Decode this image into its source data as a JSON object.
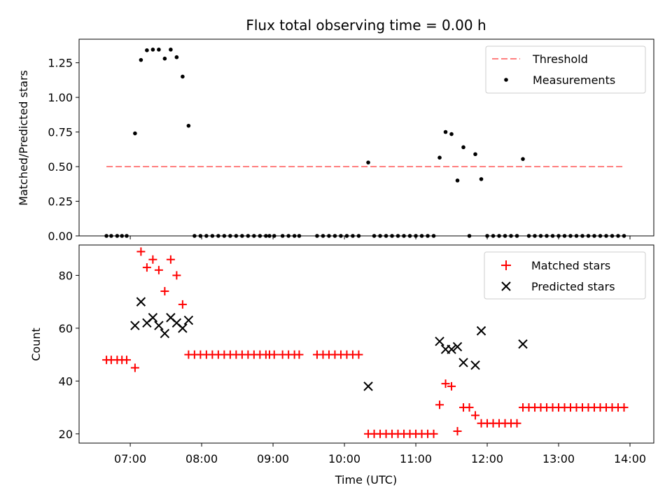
{
  "chart_data": {
    "type": "scatter",
    "title": "Flux total observing time = 0.00 h",
    "xlabel": "Time (UTC)",
    "x_ticks": [
      "07:00",
      "08:00",
      "09:00",
      "10:00",
      "11:00",
      "12:00",
      "13:00",
      "14:00"
    ],
    "xlim": [
      "06:17",
      "14:20"
    ],
    "top": {
      "ylabel": "Matched/Predicted stars",
      "ylim": [
        0,
        1.42
      ],
      "y_ticks": [
        "0.00",
        "0.25",
        "0.50",
        "0.75",
        "1.00",
        "1.25"
      ],
      "threshold": {
        "name": "Threshold",
        "value": 0.5,
        "x_range": [
          "06:40",
          "13:55"
        ],
        "color": "#ff7f7f"
      },
      "measurements": {
        "name": "Measurements",
        "color": "#000000",
        "points": [
          [
            "06:40",
            0
          ],
          [
            "06:44",
            0
          ],
          [
            "06:49",
            0
          ],
          [
            "06:53",
            0
          ],
          [
            "06:57",
            0
          ],
          [
            "07:04",
            0.74
          ],
          [
            "07:09",
            1.27
          ],
          [
            "07:14",
            1.34
          ],
          [
            "07:19",
            1.345
          ],
          [
            "07:24",
            1.345
          ],
          [
            "07:29",
            1.28
          ],
          [
            "07:34",
            1.345
          ],
          [
            "07:39",
            1.29
          ],
          [
            "07:44",
            1.15
          ],
          [
            "07:49",
            0.795
          ],
          [
            "07:54",
            0
          ],
          [
            "07:59",
            0
          ],
          [
            "08:04",
            0
          ],
          [
            "08:09",
            0
          ],
          [
            "08:14",
            0
          ],
          [
            "08:19",
            0
          ],
          [
            "08:24",
            0
          ],
          [
            "08:29",
            0
          ],
          [
            "08:34",
            0
          ],
          [
            "08:39",
            0
          ],
          [
            "08:44",
            0
          ],
          [
            "08:49",
            0
          ],
          [
            "08:54",
            0
          ],
          [
            "08:57",
            0
          ],
          [
            "09:01",
            0
          ],
          [
            "09:08",
            0
          ],
          [
            "09:13",
            0
          ],
          [
            "09:18",
            0
          ],
          [
            "09:22",
            0
          ],
          [
            "09:37",
            0
          ],
          [
            "09:42",
            0
          ],
          [
            "09:47",
            0
          ],
          [
            "09:52",
            0
          ],
          [
            "09:57",
            0
          ],
          [
            "10:02",
            0
          ],
          [
            "10:07",
            0
          ],
          [
            "10:12",
            0
          ],
          [
            "10:20",
            0.53
          ],
          [
            "10:25",
            0
          ],
          [
            "10:30",
            0
          ],
          [
            "10:35",
            0
          ],
          [
            "10:40",
            0
          ],
          [
            "10:45",
            0
          ],
          [
            "10:50",
            0
          ],
          [
            "10:55",
            0
          ],
          [
            "11:00",
            0
          ],
          [
            "11:05",
            0
          ],
          [
            "11:10",
            0
          ],
          [
            "11:15",
            0
          ],
          [
            "11:20",
            0.565
          ],
          [
            "11:25",
            0.75
          ],
          [
            "11:30",
            0.735
          ],
          [
            "11:35",
            0.4
          ],
          [
            "11:40",
            0.64
          ],
          [
            "11:45",
            0
          ],
          [
            "11:50",
            0.59
          ],
          [
            "11:55",
            0.41
          ],
          [
            "12:00",
            0
          ],
          [
            "12:05",
            0
          ],
          [
            "12:10",
            0
          ],
          [
            "12:15",
            0
          ],
          [
            "12:20",
            0
          ],
          [
            "12:25",
            0
          ],
          [
            "12:30",
            0.555
          ],
          [
            "12:35",
            0
          ],
          [
            "12:40",
            0
          ],
          [
            "12:45",
            0
          ],
          [
            "12:50",
            0
          ],
          [
            "12:55",
            0
          ],
          [
            "13:00",
            0
          ],
          [
            "13:05",
            0
          ],
          [
            "13:10",
            0
          ],
          [
            "13:15",
            0
          ],
          [
            "13:20",
            0
          ],
          [
            "13:25",
            0
          ],
          [
            "13:30",
            0
          ],
          [
            "13:35",
            0
          ],
          [
            "13:40",
            0
          ],
          [
            "13:45",
            0
          ],
          [
            "13:50",
            0
          ],
          [
            "13:55",
            0
          ]
        ]
      },
      "legend_position": "upper right"
    },
    "bottom": {
      "ylabel": "Count",
      "ylim": [
        16.5,
        91.5
      ],
      "y_ticks": [
        "20",
        "40",
        "60",
        "80"
      ],
      "series": [
        {
          "name": "Matched stars",
          "marker": "plus",
          "color": "#ff0000",
          "points": [
            [
              "06:40",
              48
            ],
            [
              "06:44",
              48
            ],
            [
              "06:49",
              48
            ],
            [
              "06:53",
              48
            ],
            [
              "06:57",
              48
            ],
            [
              "07:04",
              45
            ],
            [
              "07:09",
              89
            ],
            [
              "07:14",
              83
            ],
            [
              "07:19",
              86
            ],
            [
              "07:24",
              82
            ],
            [
              "07:29",
              74
            ],
            [
              "07:34",
              86
            ],
            [
              "07:39",
              80
            ],
            [
              "07:44",
              69
            ],
            [
              "07:49",
              50
            ],
            [
              "07:54",
              50
            ],
            [
              "07:59",
              50
            ],
            [
              "08:04",
              50
            ],
            [
              "08:09",
              50
            ],
            [
              "08:14",
              50
            ],
            [
              "08:19",
              50
            ],
            [
              "08:24",
              50
            ],
            [
              "08:29",
              50
            ],
            [
              "08:34",
              50
            ],
            [
              "08:39",
              50
            ],
            [
              "08:44",
              50
            ],
            [
              "08:49",
              50
            ],
            [
              "08:54",
              50
            ],
            [
              "08:57",
              50
            ],
            [
              "09:01",
              50
            ],
            [
              "09:08",
              50
            ],
            [
              "09:13",
              50
            ],
            [
              "09:18",
              50
            ],
            [
              "09:22",
              50
            ],
            [
              "09:37",
              50
            ],
            [
              "09:42",
              50
            ],
            [
              "09:47",
              50
            ],
            [
              "09:52",
              50
            ],
            [
              "09:57",
              50
            ],
            [
              "10:02",
              50
            ],
            [
              "10:07",
              50
            ],
            [
              "10:12",
              50
            ],
            [
              "10:20",
              20
            ],
            [
              "10:25",
              20
            ],
            [
              "10:30",
              20
            ],
            [
              "10:35",
              20
            ],
            [
              "10:40",
              20
            ],
            [
              "10:45",
              20
            ],
            [
              "10:50",
              20
            ],
            [
              "10:55",
              20
            ],
            [
              "11:00",
              20
            ],
            [
              "11:05",
              20
            ],
            [
              "11:10",
              20
            ],
            [
              "11:15",
              20
            ],
            [
              "11:20",
              31
            ],
            [
              "11:25",
              39
            ],
            [
              "11:30",
              38
            ],
            [
              "11:35",
              21
            ],
            [
              "11:40",
              30
            ],
            [
              "11:45",
              30
            ],
            [
              "11:50",
              27
            ],
            [
              "11:55",
              24
            ],
            [
              "12:00",
              24
            ],
            [
              "12:05",
              24
            ],
            [
              "12:10",
              24
            ],
            [
              "12:15",
              24
            ],
            [
              "12:20",
              24
            ],
            [
              "12:25",
              24
            ],
            [
              "12:30",
              30
            ],
            [
              "12:35",
              30
            ],
            [
              "12:40",
              30
            ],
            [
              "12:45",
              30
            ],
            [
              "12:50",
              30
            ],
            [
              "12:55",
              30
            ],
            [
              "13:00",
              30
            ],
            [
              "13:05",
              30
            ],
            [
              "13:10",
              30
            ],
            [
              "13:15",
              30
            ],
            [
              "13:20",
              30
            ],
            [
              "13:25",
              30
            ],
            [
              "13:30",
              30
            ],
            [
              "13:35",
              30
            ],
            [
              "13:40",
              30
            ],
            [
              "13:45",
              30
            ],
            [
              "13:50",
              30
            ],
            [
              "13:55",
              30
            ]
          ]
        },
        {
          "name": "Predicted stars",
          "marker": "x",
          "color": "#000000",
          "points": [
            [
              "07:04",
              61
            ],
            [
              "07:09",
              70
            ],
            [
              "07:14",
              62
            ],
            [
              "07:19",
              64
            ],
            [
              "07:24",
              61
            ],
            [
              "07:29",
              58
            ],
            [
              "07:34",
              64
            ],
            [
              "07:39",
              62
            ],
            [
              "07:44",
              60
            ],
            [
              "07:49",
              63
            ],
            [
              "10:20",
              38
            ],
            [
              "11:20",
              55
            ],
            [
              "11:25",
              52
            ],
            [
              "11:30",
              52
            ],
            [
              "11:35",
              53
            ],
            [
              "11:40",
              47
            ],
            [
              "11:50",
              46
            ],
            [
              "11:55",
              59
            ],
            [
              "12:30",
              54
            ]
          ]
        }
      ],
      "legend_position": "upper right"
    }
  }
}
